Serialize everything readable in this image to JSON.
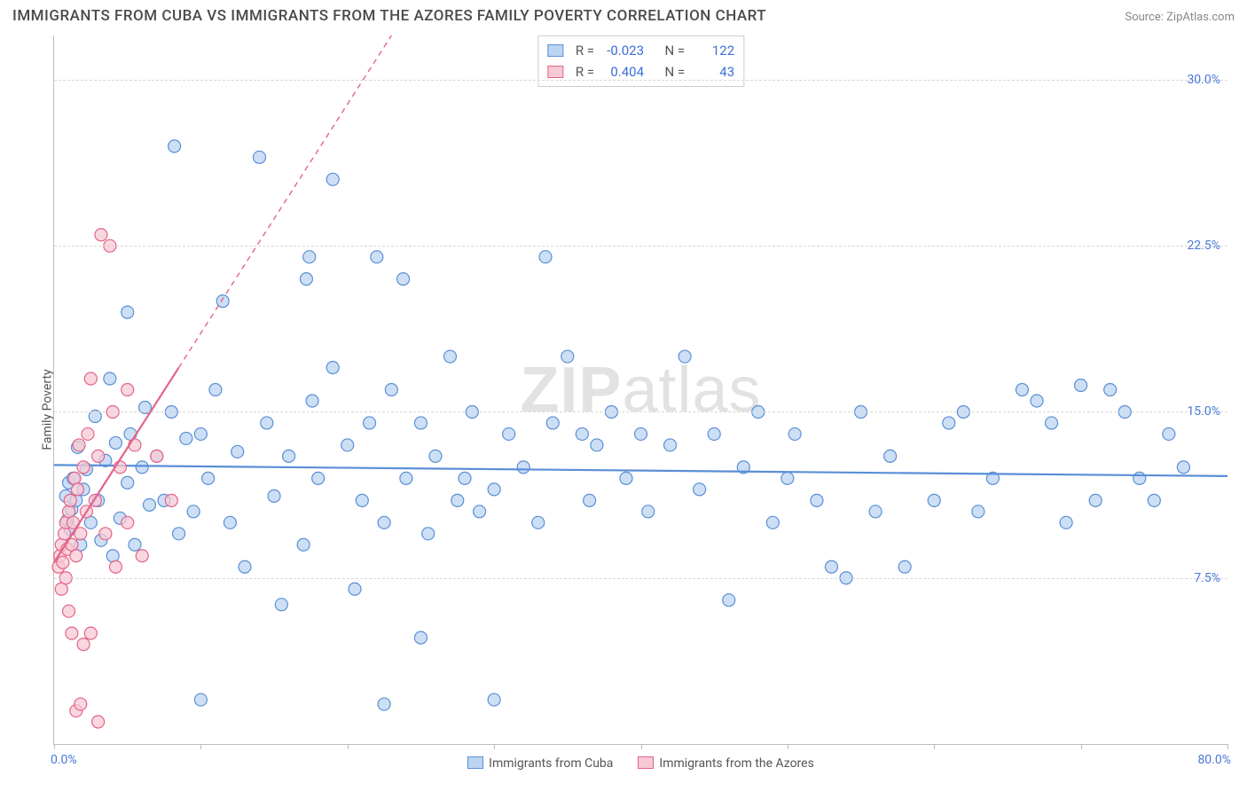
{
  "header": {
    "title": "IMMIGRANTS FROM CUBA VS IMMIGRANTS FROM THE AZORES FAMILY POVERTY CORRELATION CHART",
    "source": "Source: ZipAtlas.com"
  },
  "chart": {
    "type": "scatter",
    "ylabel": "Family Poverty",
    "xlim": [
      0,
      80
    ],
    "ylim": [
      0,
      32
    ],
    "x_tick_positions": [
      0,
      10,
      20,
      30,
      40,
      50,
      60,
      70,
      80
    ],
    "y_gridlines": [
      7.5,
      15.0,
      22.5,
      30.0
    ],
    "y_tick_labels": [
      "7.5%",
      "15.0%",
      "22.5%",
      "30.0%"
    ],
    "x_min_label": "0.0%",
    "x_max_label": "80.0%",
    "background_color": "#ffffff",
    "grid_color": "#d8d8d8",
    "axis_color": "#bdbdbd",
    "tick_label_color": "#4a78d6",
    "marker_radius": 7,
    "marker_stroke_width": 1.2,
    "trend_line_width": 2.2,
    "trend_dash": "6 5",
    "watermark": "ZIPatlas",
    "series": [
      {
        "name": "Immigrants from Cuba",
        "fill": "#bcd4f2",
        "stroke": "#5a8fd6",
        "stats": {
          "R": "-0.023",
          "N": "122"
        },
        "trend": {
          "x1": 0,
          "y1": 12.6,
          "x2": 80,
          "y2": 12.1,
          "dash_after_x": 80,
          "dash_end_x": 80,
          "dash_end_y": 12.1
        },
        "points": [
          [
            0.8,
            11.2
          ],
          [
            0.9,
            10.1
          ],
          [
            1.0,
            11.8
          ],
          [
            1.1,
            9.7
          ],
          [
            1.2,
            10.6
          ],
          [
            1.3,
            12.0
          ],
          [
            1.5,
            11.0
          ],
          [
            1.6,
            13.4
          ],
          [
            1.8,
            9.0
          ],
          [
            2.0,
            11.5
          ],
          [
            2.2,
            12.4
          ],
          [
            2.5,
            10.0
          ],
          [
            2.8,
            14.8
          ],
          [
            3.0,
            11.0
          ],
          [
            3.2,
            9.2
          ],
          [
            3.5,
            12.8
          ],
          [
            3.8,
            16.5
          ],
          [
            4.0,
            8.5
          ],
          [
            4.2,
            13.6
          ],
          [
            4.5,
            10.2
          ],
          [
            5.0,
            11.8
          ],
          [
            5.0,
            19.5
          ],
          [
            5.2,
            14.0
          ],
          [
            5.5,
            9.0
          ],
          [
            6.0,
            12.5
          ],
          [
            6.2,
            15.2
          ],
          [
            6.5,
            10.8
          ],
          [
            7.0,
            13.0
          ],
          [
            7.5,
            11.0
          ],
          [
            8.0,
            15.0
          ],
          [
            8.2,
            27.0
          ],
          [
            8.5,
            9.5
          ],
          [
            9.0,
            13.8
          ],
          [
            9.5,
            10.5
          ],
          [
            10.0,
            2.0
          ],
          [
            10.0,
            14.0
          ],
          [
            10.5,
            12.0
          ],
          [
            11.0,
            16.0
          ],
          [
            11.5,
            20.0
          ],
          [
            12.0,
            10.0
          ],
          [
            12.5,
            13.2
          ],
          [
            13.0,
            8.0
          ],
          [
            14.0,
            26.5
          ],
          [
            14.5,
            14.5
          ],
          [
            15.0,
            11.2
          ],
          [
            15.5,
            6.3
          ],
          [
            16.0,
            13.0
          ],
          [
            17.0,
            9.0
          ],
          [
            17.2,
            21.0
          ],
          [
            17.4,
            22.0
          ],
          [
            17.6,
            15.5
          ],
          [
            18.0,
            12.0
          ],
          [
            19.0,
            17.0
          ],
          [
            19.0,
            25.5
          ],
          [
            20.0,
            13.5
          ],
          [
            20.5,
            7.0
          ],
          [
            21.0,
            11.0
          ],
          [
            21.5,
            14.5
          ],
          [
            22.0,
            22.0
          ],
          [
            22.5,
            10.0
          ],
          [
            22.5,
            1.8
          ],
          [
            23.0,
            16.0
          ],
          [
            23.8,
            21.0
          ],
          [
            24.0,
            12.0
          ],
          [
            25.0,
            14.5
          ],
          [
            25.0,
            4.8
          ],
          [
            25.5,
            9.5
          ],
          [
            26.0,
            13.0
          ],
          [
            27.0,
            17.5
          ],
          [
            27.5,
            11.0
          ],
          [
            28.0,
            12.0
          ],
          [
            28.5,
            15.0
          ],
          [
            29.0,
            10.5
          ],
          [
            30.0,
            11.5
          ],
          [
            30.0,
            2.0
          ],
          [
            31.0,
            14.0
          ],
          [
            32.0,
            12.5
          ],
          [
            33.0,
            10.0
          ],
          [
            33.5,
            22.0
          ],
          [
            34.0,
            14.5
          ],
          [
            35.0,
            17.5
          ],
          [
            36.0,
            14.0
          ],
          [
            36.5,
            11.0
          ],
          [
            37.0,
            13.5
          ],
          [
            38.0,
            15.0
          ],
          [
            39.0,
            12.0
          ],
          [
            40.0,
            14.0
          ],
          [
            40.5,
            10.5
          ],
          [
            42.0,
            13.5
          ],
          [
            43.0,
            17.5
          ],
          [
            44.0,
            11.5
          ],
          [
            45.0,
            14.0
          ],
          [
            46.0,
            6.5
          ],
          [
            47.0,
            12.5
          ],
          [
            48.0,
            15.0
          ],
          [
            49.0,
            10.0
          ],
          [
            50.0,
            12.0
          ],
          [
            50.5,
            14.0
          ],
          [
            52.0,
            11.0
          ],
          [
            53.0,
            8.0
          ],
          [
            54.0,
            7.5
          ],
          [
            55.0,
            15.0
          ],
          [
            56.0,
            10.5
          ],
          [
            57.0,
            13.0
          ],
          [
            58.0,
            8.0
          ],
          [
            60.0,
            11.0
          ],
          [
            61.0,
            14.5
          ],
          [
            62.0,
            15.0
          ],
          [
            63.0,
            10.5
          ],
          [
            64.0,
            12.0
          ],
          [
            66.0,
            16.0
          ],
          [
            67.0,
            15.5
          ],
          [
            68.0,
            14.5
          ],
          [
            69.0,
            10.0
          ],
          [
            70.0,
            16.2
          ],
          [
            71.0,
            11.0
          ],
          [
            72.0,
            16.0
          ],
          [
            73.0,
            15.0
          ],
          [
            74.0,
            12.0
          ],
          [
            75.0,
            11.0
          ],
          [
            76.0,
            14.0
          ],
          [
            77.0,
            12.5
          ]
        ]
      },
      {
        "name": "Immigrants from the Azores",
        "fill": "#f7c9d4",
        "stroke": "#e3648a",
        "stats": {
          "R": "0.404",
          "N": "43"
        },
        "trend": {
          "x1": 0,
          "y1": 8.2,
          "x2": 8.5,
          "y2": 17.0,
          "dash_after_x": 8.5,
          "dash_end_x": 23,
          "dash_end_y": 32
        },
        "points": [
          [
            0.3,
            8.0
          ],
          [
            0.4,
            8.5
          ],
          [
            0.5,
            7.0
          ],
          [
            0.5,
            9.0
          ],
          [
            0.6,
            8.2
          ],
          [
            0.7,
            9.5
          ],
          [
            0.8,
            7.5
          ],
          [
            0.8,
            10.0
          ],
          [
            0.9,
            8.8
          ],
          [
            1.0,
            10.5
          ],
          [
            1.0,
            6.0
          ],
          [
            1.1,
            11.0
          ],
          [
            1.2,
            9.0
          ],
          [
            1.2,
            5.0
          ],
          [
            1.3,
            10.0
          ],
          [
            1.4,
            12.0
          ],
          [
            1.5,
            1.5
          ],
          [
            1.5,
            8.5
          ],
          [
            1.6,
            11.5
          ],
          [
            1.7,
            13.5
          ],
          [
            1.8,
            9.5
          ],
          [
            1.8,
            1.8
          ],
          [
            2.0,
            12.5
          ],
          [
            2.0,
            4.5
          ],
          [
            2.2,
            10.5
          ],
          [
            2.3,
            14.0
          ],
          [
            2.5,
            16.5
          ],
          [
            2.5,
            5.0
          ],
          [
            2.8,
            11.0
          ],
          [
            3.0,
            13.0
          ],
          [
            3.0,
            1.0
          ],
          [
            3.2,
            23.0
          ],
          [
            3.5,
            9.5
          ],
          [
            3.8,
            22.5
          ],
          [
            4.0,
            15.0
          ],
          [
            4.2,
            8.0
          ],
          [
            4.5,
            12.5
          ],
          [
            5.0,
            16.0
          ],
          [
            5.0,
            10.0
          ],
          [
            5.5,
            13.5
          ],
          [
            6.0,
            8.5
          ],
          [
            7.0,
            13.0
          ],
          [
            8.0,
            11.0
          ]
        ]
      }
    ],
    "bottom_legend": [
      {
        "label": "Immigrants from Cuba",
        "fill": "#bcd4f2",
        "stroke": "#5a8fd6"
      },
      {
        "label": "Immigrants from the Azores",
        "fill": "#f7c9d4",
        "stroke": "#e3648a"
      }
    ],
    "stat_legend": {
      "R_label": "R =",
      "N_label": "N ="
    }
  }
}
